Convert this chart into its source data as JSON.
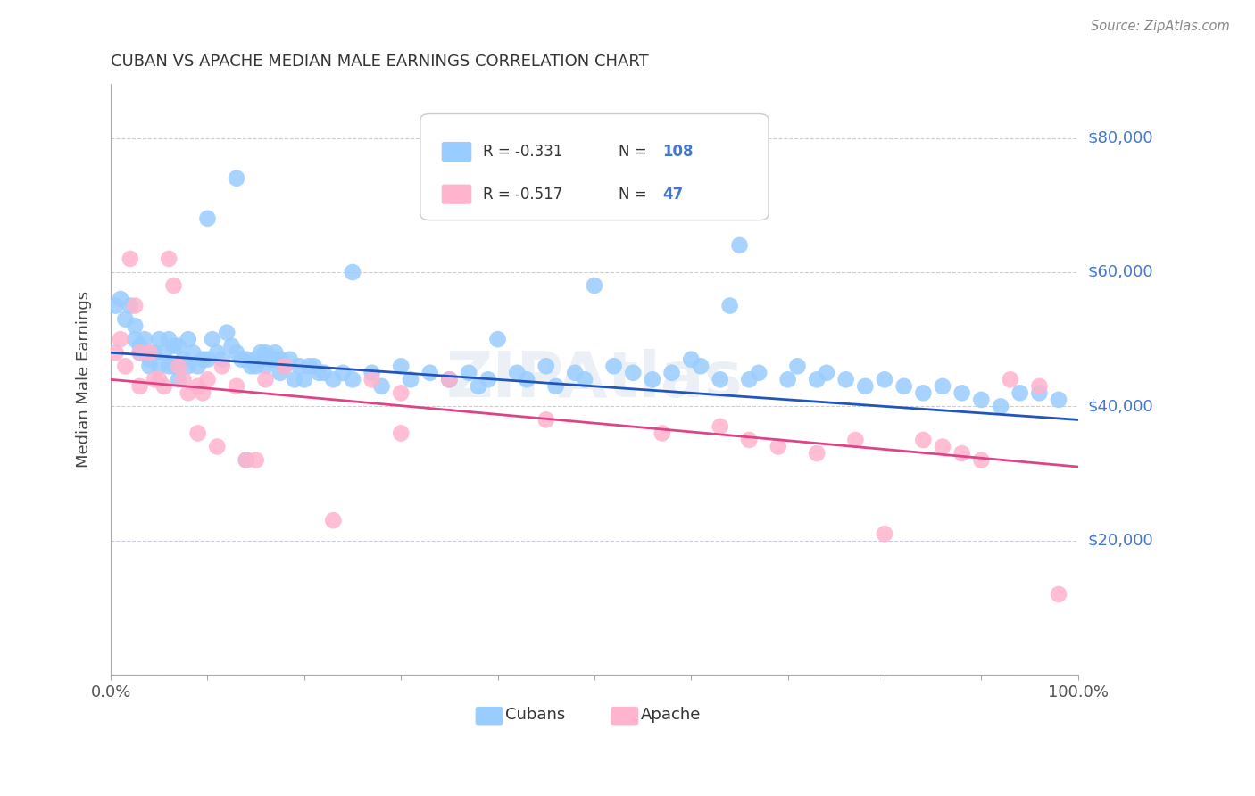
{
  "title": "CUBAN VS APACHE MEDIAN MALE EARNINGS CORRELATION CHART",
  "source": "Source: ZipAtlas.com",
  "ylabel": "Median Male Earnings",
  "y_ticks": [
    0,
    20000,
    40000,
    60000,
    80000
  ],
  "y_min": 0,
  "y_max": 88000,
  "x_min": 0.0,
  "x_max": 1.0,
  "cuban_color": "#99CCFF",
  "apache_color": "#FFB3CC",
  "cuban_line_color": "#2255BB",
  "apache_line_color": "#DD4488",
  "tick_label_color": "#4477CC",
  "grid_color": "#CCCCDD",
  "cuban_points_x": [
    0.005,
    0.01,
    0.015,
    0.02,
    0.025,
    0.025,
    0.03,
    0.03,
    0.035,
    0.04,
    0.04,
    0.045,
    0.05,
    0.05,
    0.055,
    0.06,
    0.06,
    0.065,
    0.065,
    0.07,
    0.07,
    0.075,
    0.08,
    0.08,
    0.085,
    0.09,
    0.095,
    0.1,
    0.1,
    0.105,
    0.11,
    0.115,
    0.12,
    0.125,
    0.13,
    0.135,
    0.14,
    0.145,
    0.15,
    0.155,
    0.16,
    0.17,
    0.175,
    0.18,
    0.19,
    0.2,
    0.21,
    0.22,
    0.23,
    0.24,
    0.25,
    0.27,
    0.28,
    0.3,
    0.31,
    0.33,
    0.35,
    0.37,
    0.38,
    0.39,
    0.4,
    0.42,
    0.43,
    0.45,
    0.46,
    0.48,
    0.49,
    0.5,
    0.52,
    0.54,
    0.56,
    0.58,
    0.6,
    0.61,
    0.63,
    0.65,
    0.67,
    0.7,
    0.71,
    0.73,
    0.74,
    0.76,
    0.78,
    0.8,
    0.82,
    0.84,
    0.86,
    0.88,
    0.9,
    0.92,
    0.94,
    0.96,
    0.98,
    0.64,
    0.66,
    0.13,
    0.14,
    0.25,
    0.35,
    0.15,
    0.16,
    0.165,
    0.17,
    0.175,
    0.185,
    0.195,
    0.205,
    0.215
  ],
  "cuban_points_y": [
    55000,
    56000,
    53000,
    55000,
    52000,
    50000,
    49000,
    48000,
    50000,
    47000,
    46000,
    48000,
    50000,
    46000,
    48000,
    50000,
    46000,
    49000,
    46000,
    49000,
    44000,
    47000,
    50000,
    46000,
    48000,
    46000,
    47000,
    68000,
    47000,
    50000,
    48000,
    47000,
    51000,
    49000,
    48000,
    47000,
    47000,
    46000,
    46000,
    48000,
    46000,
    47000,
    45000,
    46000,
    44000,
    44000,
    46000,
    45000,
    44000,
    45000,
    60000,
    45000,
    43000,
    46000,
    44000,
    45000,
    44000,
    45000,
    43000,
    44000,
    50000,
    45000,
    44000,
    46000,
    43000,
    45000,
    44000,
    58000,
    46000,
    45000,
    44000,
    45000,
    47000,
    46000,
    44000,
    64000,
    45000,
    44000,
    46000,
    44000,
    45000,
    44000,
    43000,
    44000,
    43000,
    42000,
    43000,
    42000,
    41000,
    40000,
    42000,
    42000,
    41000,
    55000,
    44000,
    74000,
    32000,
    44000,
    44000,
    47000,
    48000,
    47000,
    48000,
    47000,
    47000,
    46000,
    46000,
    45000
  ],
  "apache_points_x": [
    0.005,
    0.01,
    0.015,
    0.02,
    0.025,
    0.03,
    0.03,
    0.04,
    0.045,
    0.05,
    0.055,
    0.06,
    0.065,
    0.07,
    0.075,
    0.08,
    0.09,
    0.095,
    0.1,
    0.11,
    0.115,
    0.13,
    0.14,
    0.15,
    0.16,
    0.18,
    0.23,
    0.27,
    0.3,
    0.35,
    0.45,
    0.57,
    0.63,
    0.66,
    0.69,
    0.73,
    0.77,
    0.8,
    0.84,
    0.86,
    0.88,
    0.9,
    0.93,
    0.96,
    0.98,
    0.09,
    0.3
  ],
  "apache_points_y": [
    48000,
    50000,
    46000,
    62000,
    55000,
    48000,
    43000,
    48000,
    44000,
    44000,
    43000,
    62000,
    58000,
    46000,
    44000,
    42000,
    43000,
    42000,
    44000,
    34000,
    46000,
    43000,
    32000,
    32000,
    44000,
    46000,
    23000,
    44000,
    42000,
    44000,
    38000,
    36000,
    37000,
    35000,
    34000,
    33000,
    35000,
    21000,
    35000,
    34000,
    33000,
    32000,
    44000,
    43000,
    12000,
    36000,
    36000
  ]
}
